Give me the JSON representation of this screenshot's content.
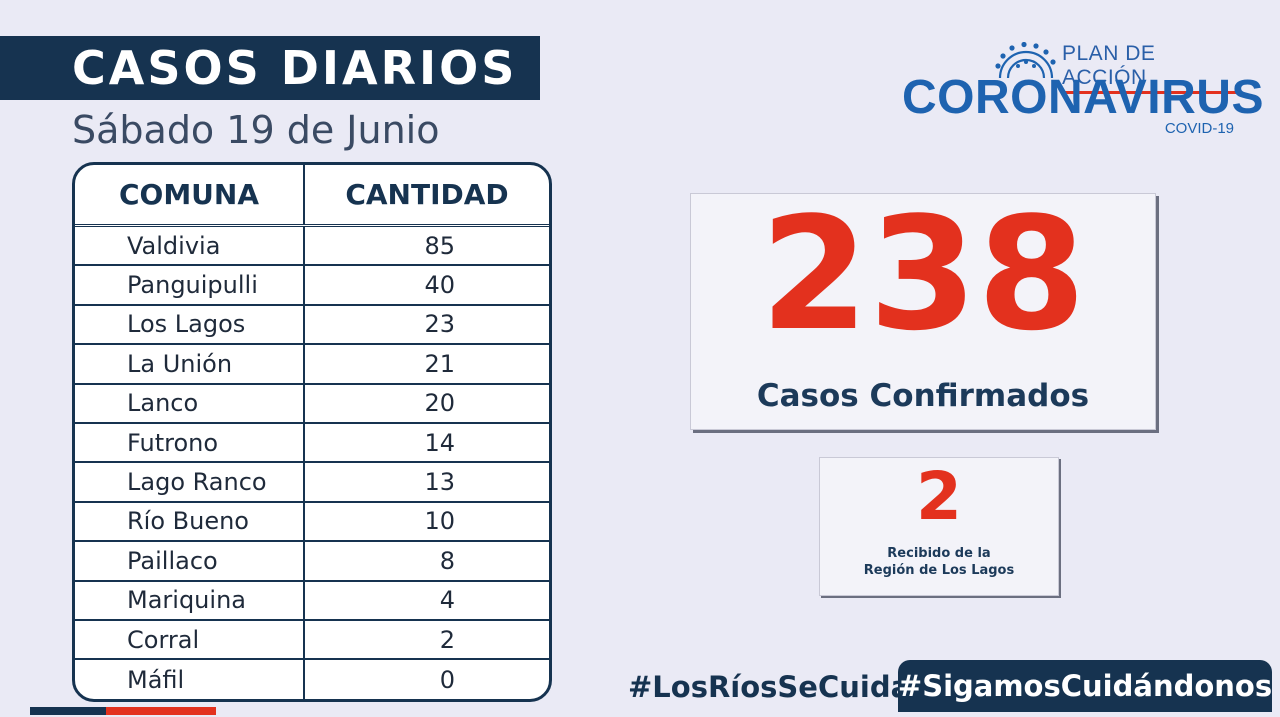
{
  "header": {
    "title": "CASOS DIARIOS",
    "date": "Sábado 19 de Junio"
  },
  "logo": {
    "top_text": "PLAN DE ACCIÓN",
    "main_text": "CORONAVIRUS",
    "sub_text": "COVID-19",
    "icon": "virus-icon"
  },
  "table": {
    "headers": [
      "COMUNA",
      "CANTIDAD"
    ],
    "rows": [
      {
        "comuna": "Valdivia",
        "cantidad": "85"
      },
      {
        "comuna": "Panguipulli",
        "cantidad": "40"
      },
      {
        "comuna": "Los Lagos",
        "cantidad": "23"
      },
      {
        "comuna": "La Unión",
        "cantidad": "21"
      },
      {
        "comuna": "Lanco",
        "cantidad": "20"
      },
      {
        "comuna": "Futrono",
        "cantidad": "14"
      },
      {
        "comuna": "Lago Ranco",
        "cantidad": "13"
      },
      {
        "comuna": "Río Bueno",
        "cantidad": "10"
      },
      {
        "comuna": "Paillaco",
        "cantidad": "8"
      },
      {
        "comuna": "Mariquina",
        "cantidad": "4"
      },
      {
        "comuna": "Corral",
        "cantidad": "2"
      },
      {
        "comuna": "Máfil",
        "cantidad": "0"
      }
    ]
  },
  "total": {
    "value": "238",
    "label": "Casos Confirmados"
  },
  "received": {
    "value": "2",
    "label_line1": "Recibido de la",
    "label_line2": "Región de Los Lagos"
  },
  "hashtags": {
    "first": "#LosRíosSeCuida",
    "second": "#SigamosCuidándonos"
  },
  "colors": {
    "navy": "#163350",
    "red": "#e3311e",
    "blue": "#1e63b0",
    "background": "#eaeaf5"
  }
}
